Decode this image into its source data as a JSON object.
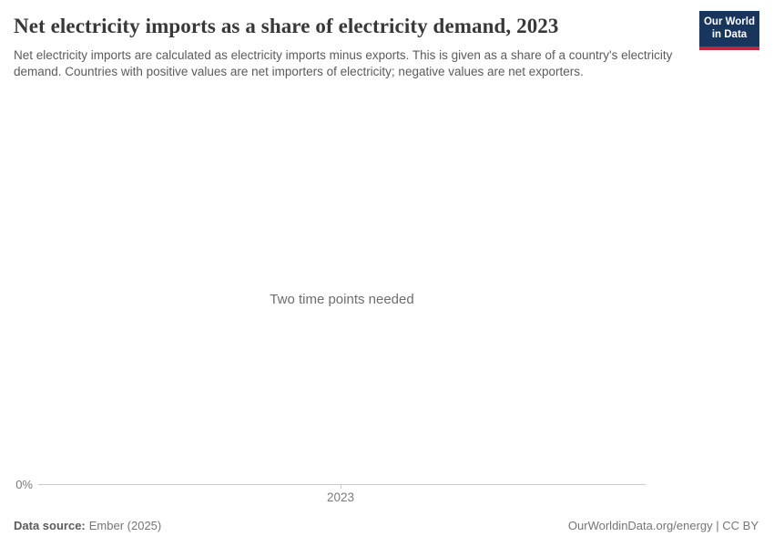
{
  "header": {
    "title": "Net electricity imports as a share of electricity demand, 2023",
    "subtitle": "Net electricity imports are calculated as electricity imports minus exports. This is given as a share of a country's electricity demand. Countries with positive values are net importers of electricity; negative values are net exporters."
  },
  "logo": {
    "line1": "Our World",
    "line2": "in Data",
    "background_color": "#18365d",
    "stripe_color": "#c0273c",
    "text_color": "#ffffff"
  },
  "chart": {
    "empty_message": "Two time points needed",
    "y_tick": "0%",
    "x_tick": "2023",
    "axis_color": "#cccccc"
  },
  "chart_data": {
    "type": "line",
    "title": "Net electricity imports as a share of electricity demand, 2023",
    "subtitle": "Net electricity imports are calculated as electricity imports minus exports. This is given as a share of a country's electricity demand. Countries with positive values are net importers of electricity; negative values are net exporters.",
    "series": [],
    "x_ticks": [
      "2023"
    ],
    "y_ticks": [
      "0%"
    ],
    "annotation": "Two time points needed",
    "grid": false,
    "legend_position": "none"
  },
  "footer": {
    "source_label": "Data source:",
    "source_value": "Ember (2025)",
    "right_link": "OurWorldinData.org/energy",
    "right_separator": " | ",
    "right_license": "CC BY"
  }
}
